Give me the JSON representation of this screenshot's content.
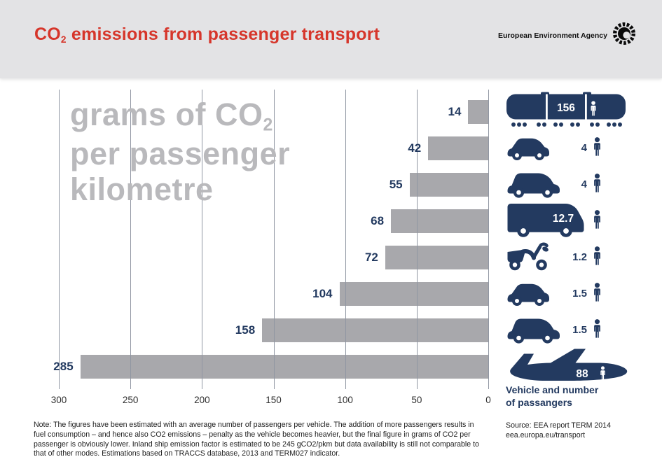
{
  "header": {
    "title_prefix": "CO",
    "title_sub": "2",
    "title_rest": " emissions from passenger transport",
    "agency_name": "European Environment Agency"
  },
  "watermark": {
    "line1_prefix": "grams of CO",
    "line1_sub": "2",
    "line2": "per passenger",
    "line3": "kilometre"
  },
  "chart_data": {
    "type": "bar",
    "orientation": "horizontal",
    "title": "CO2 emissions from passenger transport",
    "value_unit": "grams of CO2 per passenger kilometre",
    "categories": [
      "train",
      "car (4 passengers)",
      "large car (4 passengers)",
      "bus",
      "scooter",
      "car (1.5 passengers)",
      "large car (1.5 passengers)",
      "airplane"
    ],
    "values": [
      14,
      42,
      55,
      68,
      72,
      104,
      158,
      285
    ],
    "x_ticks": [
      300,
      250,
      200,
      150,
      100,
      50,
      0
    ],
    "xlim": [
      300,
      0
    ],
    "grid": true,
    "bar_color": "#a8a8ac",
    "label_color": "#233a60"
  },
  "vehicles": {
    "rows": [
      {
        "icon": "train-icon",
        "passengers": "156",
        "num_inside": true,
        "person_inside": true
      },
      {
        "icon": "small-car-icon",
        "passengers": "4",
        "num_inside": false,
        "person_inside": false
      },
      {
        "icon": "large-car-icon",
        "passengers": "4",
        "num_inside": false,
        "person_inside": false
      },
      {
        "icon": "bus-icon",
        "passengers": "12.7",
        "num_inside": true,
        "person_inside": false
      },
      {
        "icon": "scooter-icon",
        "passengers": "1.2",
        "num_inside": false,
        "person_inside": false
      },
      {
        "icon": "small-car-icon",
        "passengers": "1.5",
        "num_inside": false,
        "person_inside": false
      },
      {
        "icon": "large-car-icon",
        "passengers": "1.5",
        "num_inside": false,
        "person_inside": false
      },
      {
        "icon": "airplane-icon",
        "passengers": "88",
        "num_inside": true,
        "person_inside": true
      }
    ],
    "panel_label_line1": "Vehicle and number",
    "panel_label_line2": "of passangers"
  },
  "footer": {
    "note": "Note: The figures have been estimated with an average number of passengers per vehicle. The addition of more passengers results in fuel consumption – and hence also CO2 emissions – penalty as the vehicle becomes heavier, but the final figure in grams of CO2 per passenger is obviously lower. Inland ship emission factor is estimated to be 245 gCO2/pkm but data availability is still not comparable to that of other modes. Estimations based on TRACCS database, 2013 and TERM027 indicator.",
    "source_line1": "Source: EEA report TERM 2014",
    "source_line2": "eea.europa.eu/transport"
  },
  "colors": {
    "navy": "#233a60",
    "red": "#d6362b",
    "bar_gray": "#a8a8ac",
    "watermark_gray": "#b9b9bc",
    "header_gray": "#e3e3e5",
    "grid_gray": "#9096a2"
  }
}
